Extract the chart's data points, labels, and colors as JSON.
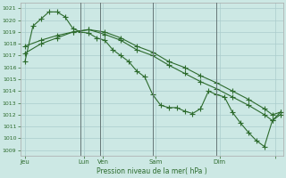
{
  "background_color": "#cce8e4",
  "grid_color": "#aacccc",
  "line_color": "#2d6b2d",
  "title": "Pression niveau de la mer( hPa )",
  "ylim": [
    1008.5,
    1021.5
  ],
  "yticks": [
    1009,
    1010,
    1011,
    1012,
    1013,
    1014,
    1015,
    1016,
    1017,
    1018,
    1019,
    1020,
    1021
  ],
  "xlim": [
    0,
    16.5
  ],
  "xtick_positions": [
    0.3,
    4.0,
    5.2,
    8.5,
    12.5,
    16.0
  ],
  "xtick_labels": [
    "Jeu",
    "Lun",
    "Ven",
    "Sam",
    "Dim",
    ""
  ],
  "vlines": [
    3.8,
    5.0,
    8.3,
    12.3
  ],
  "series1_x": [
    0.3,
    0.8,
    1.3,
    1.8,
    2.3,
    2.8,
    3.3,
    3.8,
    4.3,
    4.8,
    5.3,
    5.8,
    6.3,
    6.8,
    7.3,
    7.8,
    8.3,
    8.8,
    9.3,
    9.8,
    10.3,
    10.8,
    11.3,
    11.8,
    12.3,
    12.8,
    13.3,
    13.8,
    14.3,
    14.8,
    15.3,
    15.8,
    16.3
  ],
  "series1_y": [
    1016.5,
    1019.5,
    1020.1,
    1020.7,
    1020.7,
    1020.3,
    1019.3,
    1019.0,
    1018.9,
    1018.5,
    1018.3,
    1017.5,
    1017.0,
    1016.5,
    1015.7,
    1015.2,
    1013.7,
    1012.8,
    1012.6,
    1012.6,
    1012.3,
    1012.1,
    1012.5,
    1014.0,
    1013.7,
    1013.5,
    1012.2,
    1011.3,
    1010.5,
    1009.8,
    1009.3,
    1011.5,
    1012.2
  ],
  "series2_x": [
    0.3,
    1.3,
    2.3,
    3.3,
    4.3,
    5.3,
    6.3,
    7.3,
    8.3,
    9.3,
    10.3,
    11.3,
    12.3,
    13.3,
    14.3,
    15.3,
    15.8,
    16.3
  ],
  "series2_y": [
    1017.8,
    1018.3,
    1018.7,
    1019.0,
    1019.2,
    1019.0,
    1018.5,
    1017.8,
    1017.3,
    1016.5,
    1016.0,
    1015.3,
    1014.7,
    1014.0,
    1013.3,
    1012.5,
    1012.0,
    1012.2
  ],
  "series3_x": [
    0.3,
    1.3,
    2.3,
    3.3,
    4.3,
    5.3,
    6.3,
    7.3,
    8.3,
    9.3,
    10.3,
    11.3,
    12.3,
    13.3,
    14.3,
    15.3,
    15.8,
    16.3
  ],
  "series3_y": [
    1017.2,
    1018.0,
    1018.5,
    1019.0,
    1019.2,
    1018.8,
    1018.3,
    1017.5,
    1017.0,
    1016.2,
    1015.5,
    1014.8,
    1014.2,
    1013.5,
    1012.8,
    1012.0,
    1011.5,
    1012.0
  ]
}
